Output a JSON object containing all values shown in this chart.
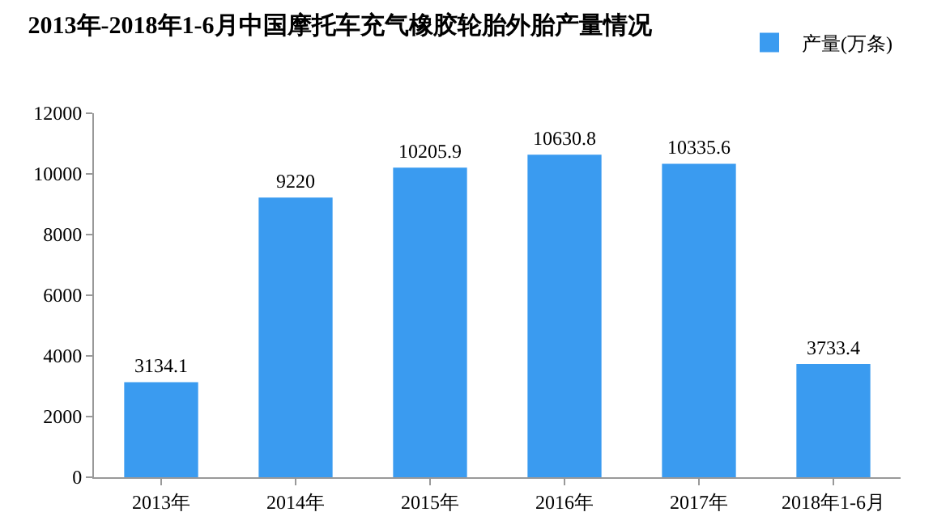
{
  "chart_data": {
    "type": "bar",
    "title": "2013年-2018年1-6月中国摩托车充气橡胶轮胎外胎产量情况",
    "categories": [
      "2013年",
      "2014年",
      "2015年",
      "2016年",
      "2017年",
      "2018年1-6月"
    ],
    "series": [
      {
        "name": "产量(万条)",
        "color": "#3a9bf0",
        "values": [
          3134.1,
          9220,
          10205.9,
          10630.8,
          10335.6,
          3733.4
        ]
      }
    ],
    "ylim": [
      0,
      12000
    ],
    "yticks": [
      0,
      2000,
      4000,
      6000,
      8000,
      10000,
      12000
    ],
    "data_labels": true,
    "grid": false,
    "legend": "top right"
  }
}
